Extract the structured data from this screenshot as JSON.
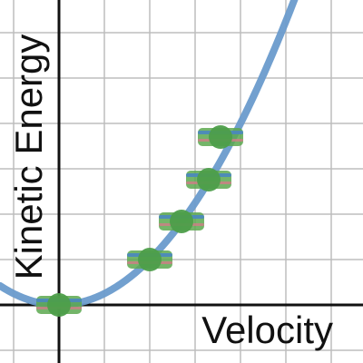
{
  "chart_data": {
    "type": "scatter",
    "xlabel": "Velocity",
    "ylabel": "Kinetic Energy",
    "xlim": [
      -0.65,
      3.35
    ],
    "ylim": [
      -0.64,
      3.36
    ],
    "grid": true,
    "curve": {
      "type": "line",
      "equation": "y = 0.5 * x^2",
      "color": "#6a9bcc"
    },
    "points": [
      {
        "x": 0.0,
        "y": 0.0
      },
      {
        "x": 1.0,
        "y": 0.5
      },
      {
        "x": 1.35,
        "y": 0.92
      },
      {
        "x": 1.65,
        "y": 1.38
      },
      {
        "x": 1.78,
        "y": 1.85
      }
    ],
    "colors": {
      "curve": "#6a9bcc",
      "point": "#4d9e4a",
      "point_band_green": "#5ca84f",
      "point_band_blue": "#4a87c0",
      "point_band_pink": "#d77a8a",
      "grid": "#bdbdbd",
      "axis": "#111111"
    }
  }
}
